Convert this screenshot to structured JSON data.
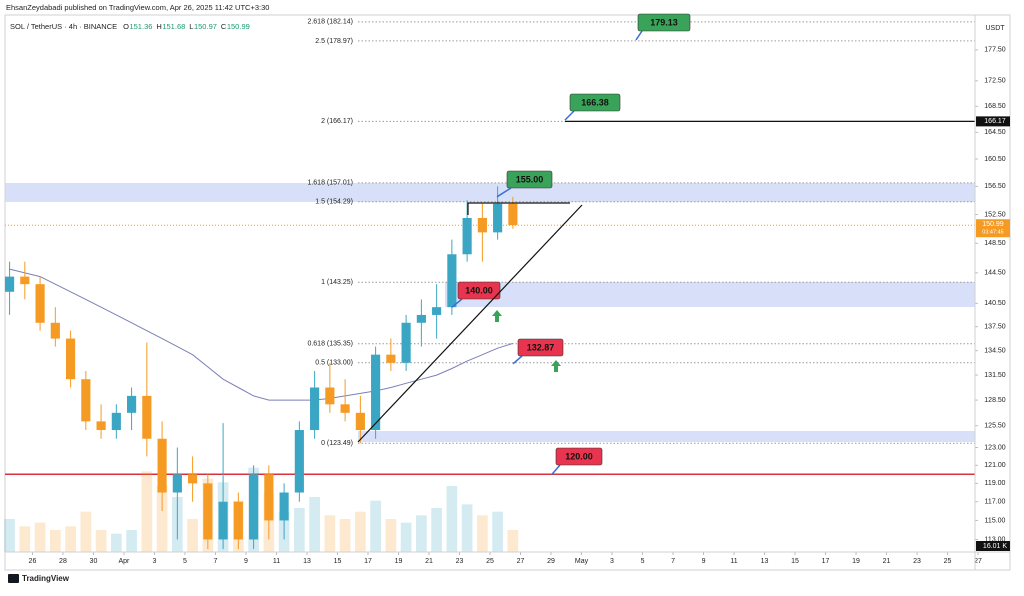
{
  "header": {
    "publisher": "EhsanZeydabadi published on TradingView.com, Apr 26, 2025 11:42 UTC+3:30",
    "symbol": "SOL / TetherUS · 4h · BINANCE",
    "ohlc": [
      {
        "key": "O",
        "value": 151.36
      },
      {
        "key": "H",
        "value": 151.68
      },
      {
        "key": "L",
        "value": 150.97
      },
      {
        "key": "C",
        "value": 150.99
      }
    ]
  },
  "chart_data": {
    "type": "candlestick",
    "log_scale": true,
    "currency": "USDT",
    "up_color": "#3aa6c4",
    "down_color": "#f59a23",
    "ma_color": "#7b7fb8",
    "ylim": [
      111.7,
      183.3
    ],
    "yticks": [
      {
        "value": 177.5,
        "label": "177.50"
      },
      {
        "value": 172.5,
        "label": "172.50"
      },
      {
        "value": 168.5,
        "label": "168.50"
      },
      {
        "value": 164.5,
        "label": "164.50"
      },
      {
        "value": 160.5,
        "label": "160.50"
      },
      {
        "value": 156.5,
        "label": "156.50"
      },
      {
        "value": 152.5,
        "label": "152.50"
      },
      {
        "value": 148.5,
        "label": "148.50"
      },
      {
        "value": 144.5,
        "label": "144.50"
      },
      {
        "value": 140.5,
        "label": "140.50"
      },
      {
        "value": 137.5,
        "label": "137.50"
      },
      {
        "value": 134.5,
        "label": "134.50"
      },
      {
        "value": 131.5,
        "label": "131.50"
      },
      {
        "value": 128.5,
        "label": "128.50"
      },
      {
        "value": 125.5,
        "label": "125.50"
      },
      {
        "value": 123,
        "label": "123.00"
      },
      {
        "value": 121,
        "label": "121.00"
      },
      {
        "value": 119,
        "label": "119.00"
      },
      {
        "value": 117,
        "label": "117.00"
      },
      {
        "value": 115,
        "label": "115.00"
      },
      {
        "value": 113,
        "label": "113.00"
      }
    ],
    "xlim": [
      -1.8,
      61.8
    ],
    "xticks": [
      {
        "value": 0,
        "label": "26"
      },
      {
        "value": 2,
        "label": "28"
      },
      {
        "value": 4,
        "label": "30"
      },
      {
        "value": 6,
        "label": "Apr"
      },
      {
        "value": 8,
        "label": "3"
      },
      {
        "value": 10,
        "label": "5"
      },
      {
        "value": 12,
        "label": "7"
      },
      {
        "value": 14,
        "label": "9"
      },
      {
        "value": 16,
        "label": "11"
      },
      {
        "value": 18,
        "label": "13"
      },
      {
        "value": 20,
        "label": "15"
      },
      {
        "value": 22,
        "label": "17"
      },
      {
        "value": 24,
        "label": "19"
      },
      {
        "value": 26,
        "label": "21"
      },
      {
        "value": 28,
        "label": "23"
      },
      {
        "value": 30,
        "label": "25"
      },
      {
        "value": 32,
        "label": "27"
      },
      {
        "value": 34,
        "label": "29"
      },
      {
        "value": 36,
        "label": "May"
      },
      {
        "value": 38,
        "label": "3"
      },
      {
        "value": 40,
        "label": "5"
      },
      {
        "value": 42,
        "label": "7"
      },
      {
        "value": 44,
        "label": "9"
      },
      {
        "value": 46,
        "label": "11"
      },
      {
        "value": 48,
        "label": "13"
      },
      {
        "value": 50,
        "label": "15"
      },
      {
        "value": 52,
        "label": "17"
      },
      {
        "value": 54,
        "label": "19"
      },
      {
        "value": 56,
        "label": "21"
      },
      {
        "value": 58,
        "label": "23"
      },
      {
        "value": 60,
        "label": "25"
      },
      {
        "value": 62,
        "label": "27"
      }
    ],
    "x": [
      -1.5,
      -0.5,
      0.5,
      1.5,
      2.5,
      3.5,
      4.5,
      5.5,
      6.5,
      7.5,
      8.5,
      9.5,
      10.5,
      11.5,
      12.5,
      13.5,
      14.5,
      15.5,
      16.5,
      17.5,
      18.5,
      19.5,
      20.5,
      21.5,
      22.5,
      23.5,
      24.5,
      25.5,
      26.5,
      27.5,
      28.5,
      29.5,
      30.5,
      31.5
    ],
    "open": [
      142,
      144,
      143,
      138,
      136,
      131,
      126,
      125,
      127,
      129,
      124,
      118,
      120,
      119,
      113,
      117,
      113,
      120,
      115,
      118,
      125,
      130,
      128,
      127,
      125,
      134,
      133,
      138,
      139,
      140,
      147,
      152,
      150,
      154
    ],
    "high": [
      146,
      146,
      144,
      140,
      137,
      132,
      128,
      128,
      130,
      135.5,
      126,
      123,
      122,
      120,
      125.8,
      118,
      121,
      121,
      119,
      126,
      132,
      133,
      131,
      129,
      135,
      136,
      139,
      141,
      143,
      149,
      154.5,
      154,
      156.5,
      155
    ],
    "low": [
      139,
      141,
      137,
      135,
      130,
      125,
      124,
      124,
      125,
      122,
      116,
      113,
      117,
      112,
      112,
      112,
      112,
      113,
      113,
      117,
      124,
      127,
      126,
      123.5,
      124,
      132,
      132,
      135,
      136,
      139,
      146,
      146,
      149,
      150.5
    ],
    "close": [
      144,
      143,
      138,
      136,
      131,
      126,
      125,
      127,
      129,
      124,
      118,
      120,
      119,
      113,
      117,
      113,
      120,
      115,
      118,
      125,
      130,
      128,
      127,
      125,
      134,
      133,
      138,
      139,
      140,
      147,
      152,
      150,
      154,
      151
    ],
    "moving_average": [
      145,
      144.5,
      144,
      143,
      142,
      141,
      140,
      139,
      138,
      137,
      136,
      135,
      134,
      132.5,
      131,
      130,
      129,
      128.5,
      128.5,
      128.5,
      128.5,
      128.7,
      129,
      129.3,
      129.6,
      130,
      130.5,
      131,
      131.5,
      132.3,
      133.2,
      134,
      134.8,
      135.4
    ],
    "volume_lim": [
      0,
      300
    ],
    "volume": [
      90,
      70,
      80,
      60,
      70,
      110,
      60,
      50,
      60,
      220,
      180,
      150,
      90,
      200,
      190,
      140,
      230,
      160,
      110,
      120,
      150,
      100,
      90,
      110,
      140,
      90,
      80,
      100,
      120,
      180,
      130,
      100,
      110,
      60
    ],
    "fib_levels": [
      {
        "value": 182.14,
        "label": "2.618 (182.14)"
      },
      {
        "value": 178.97,
        "label": "2.5 (178.97)"
      },
      {
        "value": 166.17,
        "label": "2 (166.17)"
      },
      {
        "value": 157.01,
        "label": "1.618 (157.01)"
      },
      {
        "value": 154.29,
        "label": "1.5 (154.29)"
      },
      {
        "value": 143.25,
        "label": "1 (143.25)"
      },
      {
        "value": 135.35,
        "label": "0.618 (135.35)"
      },
      {
        "value": 133,
        "label": "0.5 (133.00)"
      },
      {
        "value": 123.49,
        "label": "0 (123.49)"
      }
    ],
    "targets": [
      {
        "value": 179.13,
        "color": "#3aa35a"
      },
      {
        "value": 166.38,
        "color": "#3aa35a"
      },
      {
        "value": 155,
        "label": "155.00",
        "color": "#3aa35a"
      },
      {
        "value": 140,
        "label": "140.00",
        "color": "#e8344e"
      },
      {
        "value": 132.87,
        "color": "#e8344e"
      },
      {
        "value": 120,
        "label": "120.00",
        "color": "#e8344e"
      }
    ],
    "support_line": {
      "value": 120,
      "color": "#d8303c"
    },
    "alert_line": {
      "value": 166.17
    },
    "last_price": {
      "value": 150.99,
      "countdown": "03:47:45",
      "color": "#f59a23"
    },
    "last_volume": {
      "value": 16.01,
      "label": "16.01 K"
    }
  },
  "footer": {
    "brand": "TradingView"
  }
}
